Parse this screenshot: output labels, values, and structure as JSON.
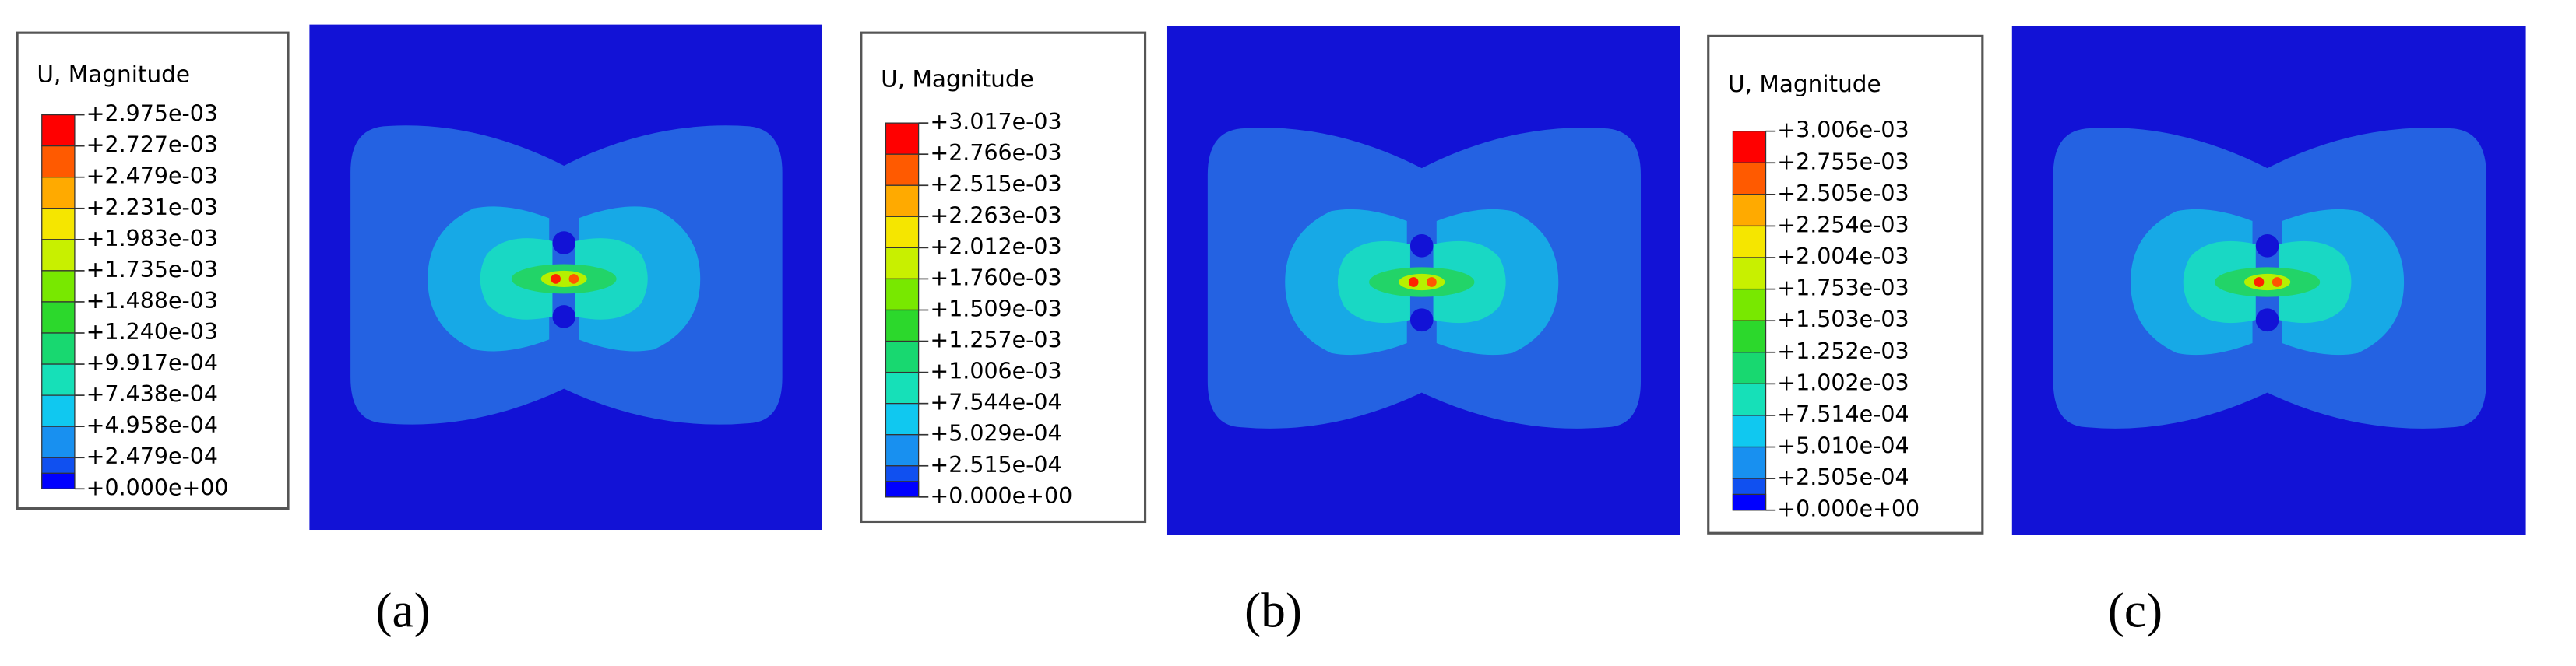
{
  "panels": [
    {
      "legend_title": "U, Magnitude",
      "labels": [
        "+2.975e-03",
        "+2.727e-03",
        "+2.479e-03",
        "+2.231e-03",
        "+1.983e-03",
        "+1.735e-03",
        "+1.488e-03",
        "+1.240e-03",
        "+9.917e-04",
        "+7.438e-04",
        "+4.958e-04",
        "+2.479e-04",
        "+0.000e+00"
      ],
      "caption": "(a)"
    },
    {
      "legend_title": "U, Magnitude",
      "labels": [
        "+3.017e-03",
        "+2.766e-03",
        "+2.515e-03",
        "+2.263e-03",
        "+2.012e-03",
        "+1.760e-03",
        "+1.509e-03",
        "+1.257e-03",
        "+1.006e-03",
        "+7.544e-04",
        "+5.029e-04",
        "+2.515e-04",
        "+0.000e+00"
      ],
      "caption": "(b)"
    },
    {
      "legend_title": "U, Magnitude",
      "labels": [
        "+3.006e-03",
        "+2.755e-03",
        "+2.505e-03",
        "+2.254e-03",
        "+2.004e-03",
        "+1.753e-03",
        "+1.503e-03",
        "+1.252e-03",
        "+1.002e-03",
        "+7.514e-04",
        "+5.010e-04",
        "+2.505e-04",
        "+0.000e+00"
      ],
      "caption": "(c)"
    }
  ]
}
